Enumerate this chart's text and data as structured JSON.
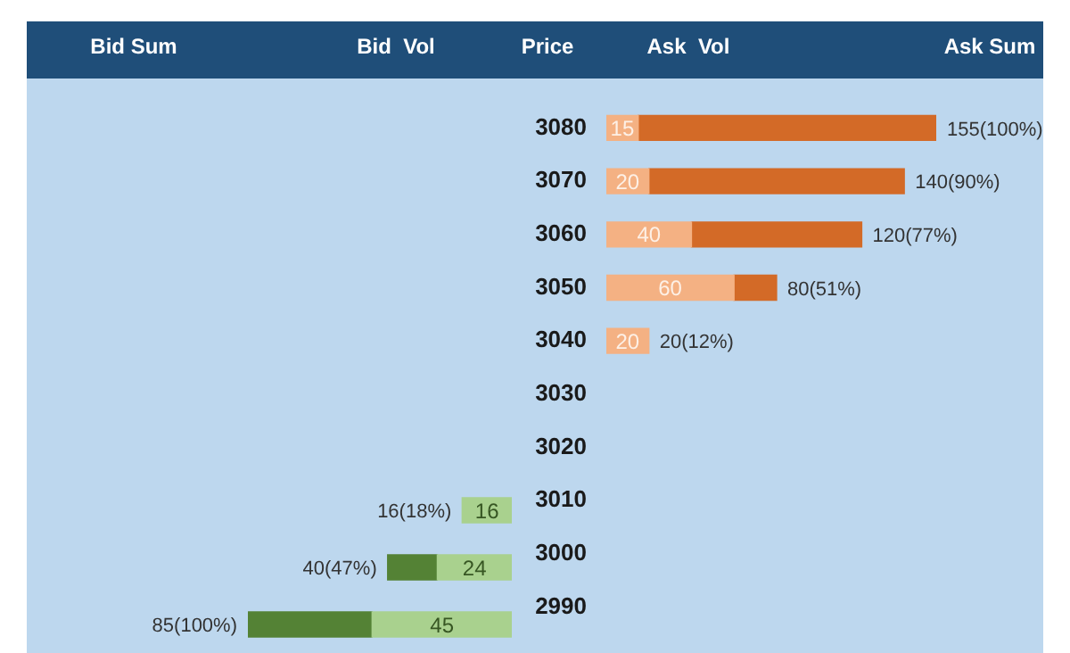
{
  "chart_data": [
    {
      "type": "bar",
      "orientation": "horizontal",
      "stacked": true,
      "tick_labels": false,
      "annotations": [
        "Bid Sum",
        "Bid  Vol"
      ],
      "categories": [
        "3080",
        "3070",
        "3060",
        "3050",
        "3040",
        "3030",
        "3020",
        "3010",
        "3000",
        "2990"
      ],
      "series": [
        {
          "color": "#a9d18e",
          "values": [
            null,
            null,
            null,
            null,
            null,
            null,
            null,
            16,
            24,
            45
          ],
          "value_labels": [
            null,
            null,
            null,
            null,
            null,
            null,
            null,
            "16",
            "24",
            "45"
          ]
        },
        {
          "color": "#548235",
          "values": [
            null,
            null,
            null,
            null,
            null,
            null,
            null,
            null,
            16,
            40
          ]
        }
      ],
      "totals": [
        null,
        null,
        null,
        null,
        null,
        null,
        null,
        "16(18%)",
        "40(47%)",
        "85(100%)"
      ]
    },
    {
      "type": "bar",
      "orientation": "horizontal",
      "stacked": true,
      "tick_labels": "y",
      "annotations": [
        "Price",
        "Ask  Vol",
        "Ask Sum"
      ],
      "categories": [
        "3080",
        "3070",
        "3060",
        "3050",
        "3040",
        "3030",
        "3020",
        "3010",
        "3000",
        "2990"
      ],
      "series": [
        {
          "color": "#f4b183",
          "values": [
            15,
            20,
            40,
            60,
            20,
            null,
            null,
            null,
            null,
            null
          ],
          "value_labels": [
            "15",
            "20",
            "40",
            "60",
            "20",
            null,
            null,
            null,
            null,
            null
          ]
        },
        {
          "color": "#d36a27",
          "values": [
            140,
            120,
            80,
            20,
            null,
            null,
            null,
            null,
            null,
            null
          ]
        }
      ],
      "totals": [
        "155(100%)",
        "140(90%)",
        "120(77%)",
        "80(51%)",
        "20(12%)",
        null,
        null,
        null,
        null,
        null
      ]
    }
  ]
}
